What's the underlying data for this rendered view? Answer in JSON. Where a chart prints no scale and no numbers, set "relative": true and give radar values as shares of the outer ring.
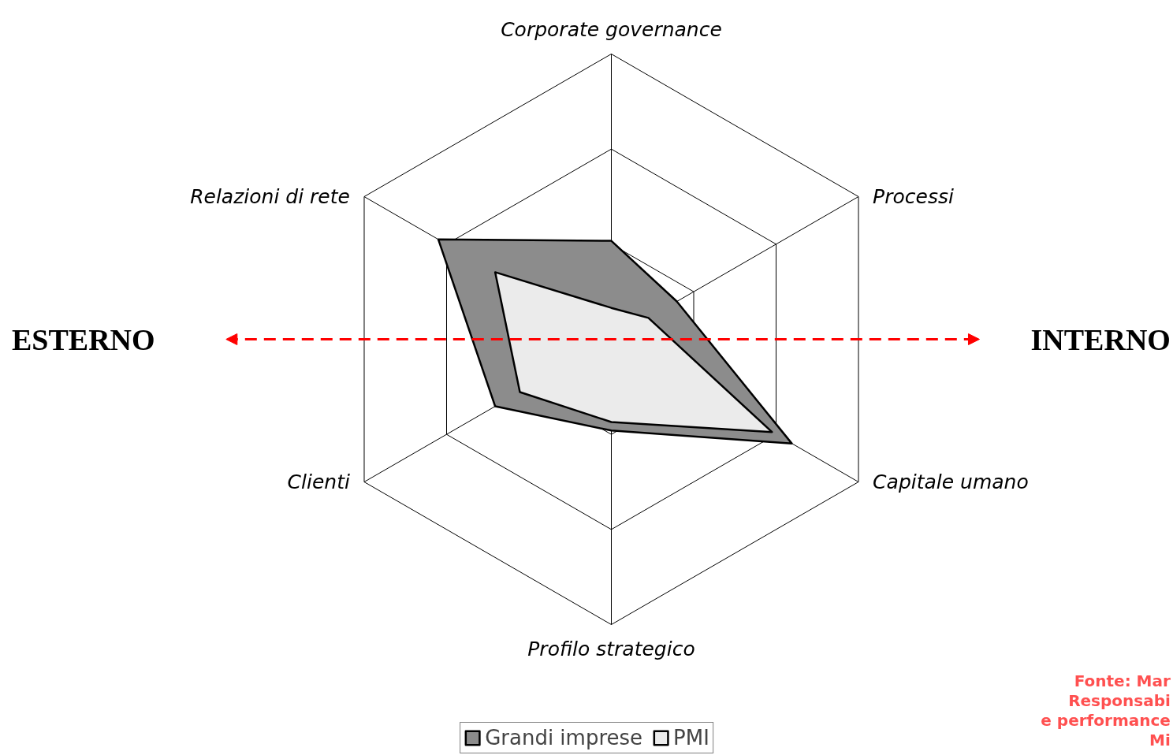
{
  "chart_data": {
    "type": "radar",
    "relative": true,
    "categories": [
      "Corporate governance",
      "Processi",
      "Capitale umano",
      "Profilo strategico",
      "Clienti",
      "Relazioni di rete"
    ],
    "series": [
      {
        "name": "Grandi imprese",
        "color": "#8c8c8c",
        "values": [
          0.345,
          0.265,
          0.73,
          0.32,
          0.47,
          0.7
        ]
      },
      {
        "name": "PMI",
        "color": "#ebebeb",
        "values": [
          0.11,
          0.15,
          0.65,
          0.29,
          0.37,
          0.47
        ]
      }
    ],
    "annotations": [
      "ESTERNO",
      "INTERNO",
      "Fonte: Mar\nResponsabi\ne performance\nMi"
    ],
    "grid": true,
    "legend": "bottom"
  }
}
